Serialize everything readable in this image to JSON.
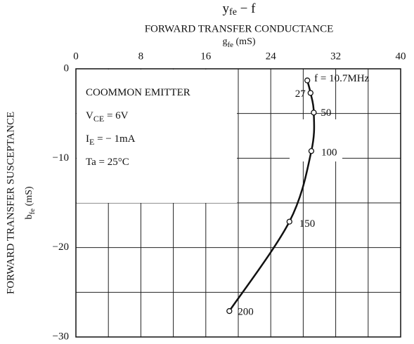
{
  "chart_data": {
    "type": "line",
    "title": {
      "main": "y",
      "sub": "fe",
      "rest": " − f"
    },
    "subtitle": "FORWARD TRANSFER CONDUCTANCE",
    "x_label": {
      "main": "g",
      "sub": "fe",
      "rest": "  (mS)"
    },
    "y_label": "FORWARD TRANSFER SUSCEPTANCE",
    "y_unit": {
      "main": "b",
      "sub": "fe",
      "rest": "  (mS)"
    },
    "xlim": [
      0,
      40
    ],
    "xticks": [
      0,
      8,
      16,
      24,
      32,
      40
    ],
    "xminor": [
      4,
      12,
      20,
      28,
      36
    ],
    "ylim": [
      -30,
      0
    ],
    "yticks": [
      0,
      {
        "value": -10,
        "label": "−10"
      },
      {
        "value": -20,
        "label": "−20"
      },
      {
        "value": -30,
        "label": "−30"
      }
    ],
    "yminor": [
      -5,
      -15,
      -25
    ],
    "grid": true,
    "annotations": [
      {
        "main": "COOMMON EMITTER",
        "sub": "",
        "rest": ""
      },
      {
        "main": "V",
        "sub": "CE",
        "rest": " = 6V"
      },
      {
        "main": "I",
        "sub": "E",
        "rest": " = − 1mA"
      },
      {
        "main": "Ta = 25°C",
        "sub": "",
        "rest": ""
      }
    ],
    "series": [
      {
        "color": "#111111",
        "x": [
          28.5,
          28.9,
          29.3,
          29.0,
          26.3,
          18.9
        ],
        "values": [
          -1.3,
          -2.7,
          -4.9,
          -9.2,
          -17.1,
          -27.1
        ],
        "point_labels": [
          "f = 10.7MHz",
          "27",
          "50",
          "100",
          "150",
          "200"
        ]
      }
    ]
  }
}
